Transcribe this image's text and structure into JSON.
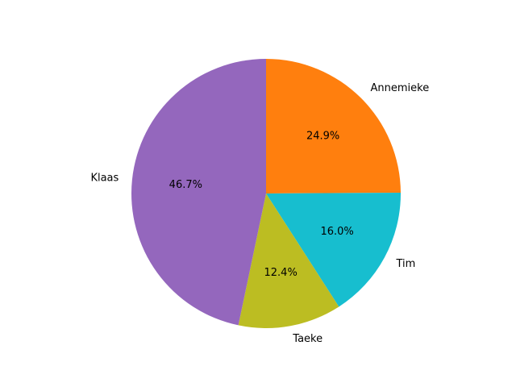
{
  "chart_data": {
    "type": "pie",
    "title": "",
    "slices": [
      {
        "label": "Annemieke",
        "percent": 24.9,
        "pct_text": "24.9%",
        "color": "#ff7f0e"
      },
      {
        "label": "Tim",
        "percent": 16.0,
        "pct_text": "16.0%",
        "color": "#17becf"
      },
      {
        "label": "Taeke",
        "percent": 12.4,
        "pct_text": "12.4%",
        "color": "#bcbd22"
      },
      {
        "label": "Klaas",
        "percent": 46.7,
        "pct_text": "46.7%",
        "color": "#9467bd"
      }
    ],
    "start_angle_deg": 90,
    "direction": "clockwise",
    "legend": "none"
  }
}
